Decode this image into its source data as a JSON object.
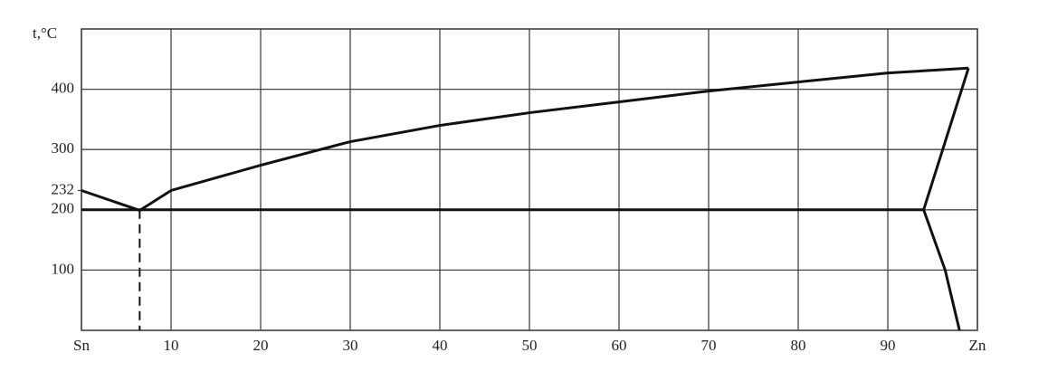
{
  "chart_data": {
    "type": "line",
    "ylabel": "t,°C",
    "xlim": [
      0,
      100
    ],
    "ylim": [
      0,
      500
    ],
    "xticks": [
      {
        "value": 0,
        "label": "Sn"
      },
      10,
      20,
      30,
      40,
      50,
      60,
      70,
      80,
      90,
      {
        "value": 100,
        "label": "Zn"
      }
    ],
    "yticks": [
      100,
      200,
      300,
      400
    ],
    "y_annotations": [
      232
    ],
    "grid": true,
    "series": [
      {
        "color": "#111111",
        "x": [
          0,
          6.5
        ],
        "values": [
          232,
          199
        ]
      },
      {
        "color": "#111111",
        "x": [
          6.5,
          10,
          20,
          30,
          40,
          50,
          60,
          70,
          80,
          90,
          99
        ],
        "values": [
          199,
          232,
          274,
          313,
          340,
          361,
          379,
          397,
          412,
          427,
          435
        ]
      },
      {
        "color": "#111111",
        "x": [
          99,
          94,
          96.4,
          98
        ],
        "values": [
          435,
          200,
          100,
          0
        ]
      },
      {
        "color": "#111111",
        "x": [
          0,
          94
        ],
        "values": [
          200,
          200
        ]
      },
      {
        "color": "#111111",
        "x": [
          6.5,
          6.5
        ],
        "values": [
          200,
          0
        ],
        "dash": true
      }
    ]
  }
}
